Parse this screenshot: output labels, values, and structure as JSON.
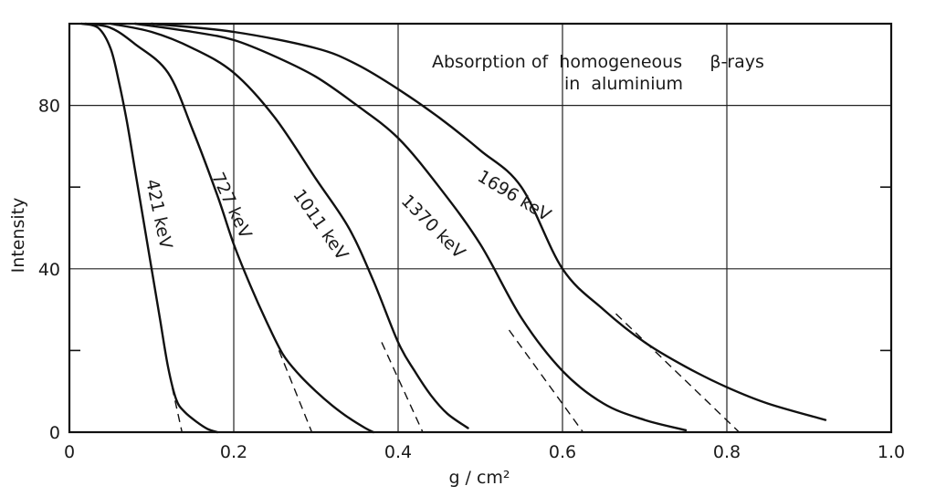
{
  "chart_data": {
    "type": "line",
    "title": "Absorption of  homogeneous     β-rays",
    "title_line2": "in  aluminium",
    "xlabel": "g / cm²",
    "ylabel": "Intensity",
    "xlim": [
      0,
      1.0
    ],
    "ylim": [
      0,
      100
    ],
    "grid": true,
    "x_ticks": [
      {
        "value": 0,
        "label": "0"
      },
      {
        "value": 0.2,
        "label": "0.2"
      },
      {
        "value": 0.4,
        "label": "0.4"
      },
      {
        "value": 0.6,
        "label": "0.6"
      },
      {
        "value": 0.8,
        "label": "0.8"
      },
      {
        "value": 1.0,
        "label": "1.0"
      }
    ],
    "y_ticks": [
      {
        "value": 0,
        "label": "0"
      },
      {
        "value": 40,
        "label": "40"
      },
      {
        "value": 80,
        "label": "80"
      }
    ],
    "y_minor_ticks": [
      20,
      60
    ],
    "series": [
      {
        "name": "421 keV",
        "points": [
          [
            0.015,
            100
          ],
          [
            0.035,
            99
          ],
          [
            0.05,
            94
          ],
          [
            0.06,
            86
          ],
          [
            0.07,
            76
          ],
          [
            0.08,
            64
          ],
          [
            0.09,
            52
          ],
          [
            0.1,
            40
          ],
          [
            0.11,
            28
          ],
          [
            0.12,
            16
          ],
          [
            0.13,
            8
          ],
          [
            0.14,
            5
          ],
          [
            0.155,
            2.5
          ],
          [
            0.168,
            0.8
          ],
          [
            0.18,
            0
          ]
        ],
        "extrapolation": [
          [
            0.125,
            11
          ],
          [
            0.137,
            0
          ]
        ]
      },
      {
        "name": "727 keV",
        "points": [
          [
            0.02,
            100
          ],
          [
            0.05,
            99
          ],
          [
            0.08,
            95
          ],
          [
            0.12,
            88
          ],
          [
            0.15,
            74
          ],
          [
            0.18,
            58
          ],
          [
            0.2,
            46
          ],
          [
            0.22,
            36
          ],
          [
            0.24,
            27
          ],
          [
            0.26,
            19
          ],
          [
            0.28,
            14
          ],
          [
            0.3,
            10
          ],
          [
            0.32,
            6.5
          ],
          [
            0.34,
            3.5
          ],
          [
            0.36,
            1
          ],
          [
            0.37,
            0
          ]
        ],
        "extrapolation": [
          [
            0.255,
            20
          ],
          [
            0.295,
            0
          ]
        ]
      },
      {
        "name": "1011 keV",
        "points": [
          [
            0.05,
            100
          ],
          [
            0.1,
            98
          ],
          [
            0.15,
            94
          ],
          [
            0.2,
            88
          ],
          [
            0.25,
            77
          ],
          [
            0.3,
            62
          ],
          [
            0.34,
            50
          ],
          [
            0.37,
            37
          ],
          [
            0.4,
            22
          ],
          [
            0.42,
            15
          ],
          [
            0.44,
            9
          ],
          [
            0.46,
            4.5
          ],
          [
            0.485,
            1
          ]
        ],
        "extrapolation": [
          [
            0.38,
            22
          ],
          [
            0.43,
            0
          ]
        ]
      },
      {
        "name": "1370 keV",
        "points": [
          [
            0.08,
            100
          ],
          [
            0.15,
            98
          ],
          [
            0.2,
            96
          ],
          [
            0.25,
            92
          ],
          [
            0.3,
            87
          ],
          [
            0.35,
            80
          ],
          [
            0.4,
            72
          ],
          [
            0.45,
            60
          ],
          [
            0.5,
            46
          ],
          [
            0.55,
            28
          ],
          [
            0.6,
            15
          ],
          [
            0.65,
            7
          ],
          [
            0.7,
            3
          ],
          [
            0.75,
            0.5
          ]
        ],
        "extrapolation": [
          [
            0.535,
            25
          ],
          [
            0.625,
            0
          ]
        ]
      },
      {
        "name": "1696 keV",
        "points": [
          [
            0.1,
            100
          ],
          [
            0.2,
            98
          ],
          [
            0.3,
            94
          ],
          [
            0.35,
            90
          ],
          [
            0.4,
            84
          ],
          [
            0.45,
            77
          ],
          [
            0.5,
            69
          ],
          [
            0.55,
            60
          ],
          [
            0.6,
            40
          ],
          [
            0.65,
            30
          ],
          [
            0.7,
            22
          ],
          [
            0.75,
            16
          ],
          [
            0.8,
            11
          ],
          [
            0.85,
            7
          ],
          [
            0.92,
            3
          ]
        ],
        "extrapolation": [
          [
            0.665,
            29
          ],
          [
            0.815,
            0
          ]
        ]
      }
    ]
  }
}
